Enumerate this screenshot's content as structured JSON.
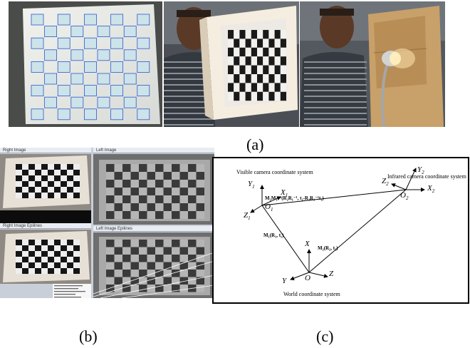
{
  "captions": {
    "a": "(a)",
    "b": "(b)",
    "c": "(c)"
  },
  "panel_b": {
    "windows": {
      "right_image": "Right Image",
      "left_image": "Left Image",
      "right_epilines": "Right Image Epilines",
      "left_epilines": "Left Image Epilines"
    }
  },
  "diagram": {
    "visible_system_label": "Visible camera coordinate system",
    "infrared_system_label": "Infrared camera coordinate system",
    "world_system_label": "World coordinate system",
    "visible_axes": {
      "y": "Y",
      "y_sub": "1",
      "x": "X",
      "x_sub": "1",
      "z": "Z",
      "z_sub": "1",
      "origin": "O",
      "origin_sub": "1"
    },
    "infrared_axes": {
      "y": "Y",
      "y_sub": "2",
      "x": "X",
      "x_sub": "2",
      "z": "Z",
      "z_sub": "2",
      "origin": "O",
      "origin_sub": "2"
    },
    "world_axes": {
      "x": "X",
      "y": "Y",
      "z": "Z",
      "origin": "O"
    },
    "transform_relative": "M₂M₁⁻¹(R₂R₁⁻¹, t₂-R₂R₁⁻¹t₁)",
    "transform_visible": "M₁(R₁, t₁)",
    "transform_infrared": "M₂(R₂, t₂)"
  },
  "colors": {
    "diagram_line": "#000000",
    "frame_border": "#000000",
    "blue_marker": "#2e58c8"
  }
}
